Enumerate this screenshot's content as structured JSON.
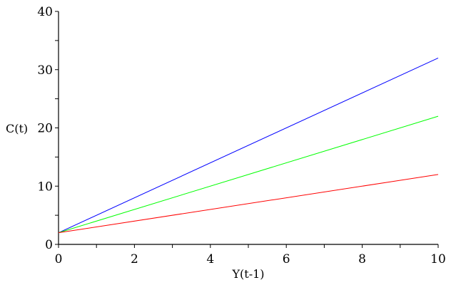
{
  "chart_data": {
    "type": "line",
    "title": "",
    "xlabel": "Y(t-1)",
    "ylabel": "C(t)",
    "xlim": [
      0,
      10
    ],
    "ylim": [
      0,
      40
    ],
    "x_ticks": [
      0,
      2,
      4,
      6,
      8,
      10
    ],
    "y_ticks": [
      0,
      10,
      20,
      30,
      40
    ],
    "x_tick_labels": [
      "0",
      "2",
      "4",
      "6",
      "8",
      "10"
    ],
    "y_tick_labels": [
      "0",
      "10",
      "20",
      "30",
      "40"
    ],
    "x_minor_step": 1,
    "y_minor_step": 5,
    "grid": false,
    "legend": "none",
    "series": [
      {
        "color": "#0000ff",
        "x": [
          0,
          10
        ],
        "y": [
          2,
          32
        ]
      },
      {
        "color": "#00ff00",
        "x": [
          0,
          10
        ],
        "y": [
          2,
          22
        ]
      },
      {
        "color": "#ff0000",
        "x": [
          0,
          10
        ],
        "y": [
          2,
          12
        ]
      }
    ]
  }
}
